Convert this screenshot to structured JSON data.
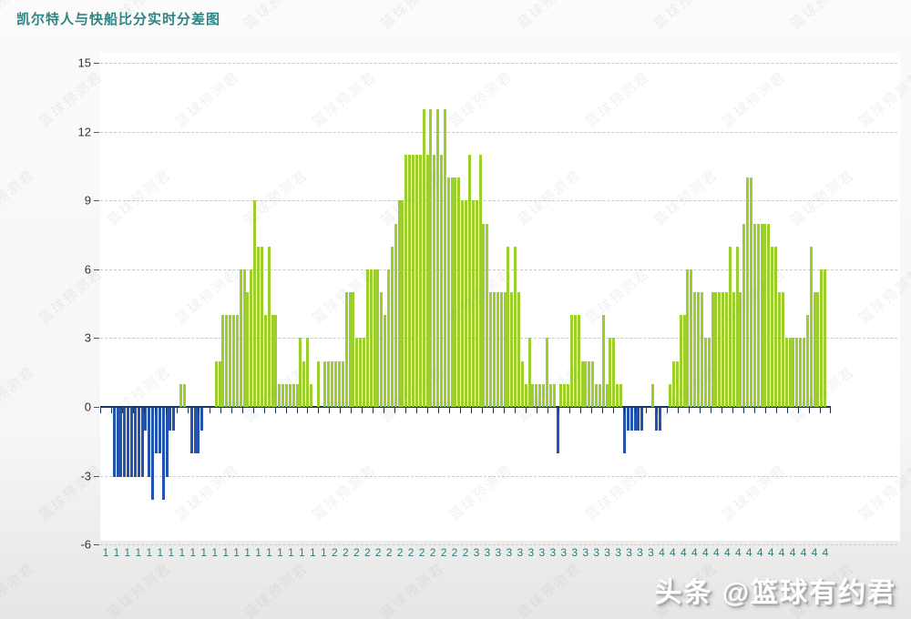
{
  "title": "凯尔特人与快船比分实时分差图",
  "branding": "头条 @篮球有约君",
  "watermark": "篮球预测君",
  "colors": {
    "positive_bar": "#9dcf2c",
    "negative_bar": "#2153af",
    "zero_axis": "#16375e",
    "title": "#2e8585",
    "x_tick_label": "#2e7d7d",
    "y_tick_label": "#333333",
    "grid": "#c9c9c9"
  },
  "chart_data": {
    "type": "bar",
    "title": "凯尔特人与快船比分实时分差图",
    "xlabel": "",
    "ylabel": "",
    "ylim": [
      -6,
      15
    ],
    "grid": "dashed-horizontal",
    "legend": "none",
    "yticks": [
      15,
      12,
      9,
      6,
      3,
      0,
      -3,
      -6
    ],
    "x_tick_groups": [
      {
        "label": "1",
        "count": 21
      },
      {
        "label": "2",
        "count": 13
      },
      {
        "label": "3",
        "count": 17
      },
      {
        "label": "4",
        "count": 16
      }
    ],
    "series_name": "凯尔特人与快船实时分差",
    "values": [
      0,
      0,
      0,
      -3,
      -3,
      -3,
      -3,
      -3,
      -3,
      -3,
      -3,
      -3,
      -1,
      -3,
      -4,
      -2,
      -2,
      -4,
      -3,
      -1,
      -1,
      0,
      1,
      1,
      0,
      -2,
      -2,
      -2,
      -1,
      0,
      0,
      0,
      2,
      2,
      4,
      4,
      4,
      4,
      4,
      6,
      6,
      5,
      6,
      9,
      7,
      7,
      4,
      7,
      4,
      4,
      1,
      1,
      1,
      1,
      1,
      1,
      3,
      2,
      3,
      1,
      0,
      2,
      0,
      2,
      2,
      2,
      2,
      2,
      2,
      5,
      5,
      5,
      3,
      3,
      3,
      6,
      6,
      6,
      6,
      5,
      4,
      6,
      7,
      8,
      9,
      9,
      11,
      11,
      11,
      11,
      11,
      13,
      11,
      13,
      11,
      13,
      11,
      13,
      10,
      10,
      10,
      10,
      9,
      9,
      11,
      9,
      9,
      11,
      8,
      8,
      5,
      5,
      5,
      5,
      5,
      7,
      5,
      7,
      5,
      2,
      1,
      3,
      1,
      1,
      1,
      1,
      3,
      1,
      1,
      -2,
      1,
      1,
      1,
      4,
      4,
      4,
      2,
      2,
      2,
      2,
      1,
      1,
      4,
      1,
      3,
      3,
      1,
      1,
      -2,
      -1,
      -1,
      -1,
      -1,
      -1,
      0,
      0,
      1,
      -1,
      -1,
      0,
      0,
      1,
      2,
      2,
      4,
      4,
      6,
      6,
      5,
      5,
      5,
      3,
      3,
      5,
      5,
      5,
      5,
      5,
      7,
      5,
      7,
      5,
      8,
      10,
      10,
      8,
      8,
      8,
      8,
      8,
      7,
      7,
      5,
      5,
      3,
      3,
      3,
      3,
      3,
      3,
      4,
      7,
      5,
      5,
      6,
      6
    ]
  }
}
